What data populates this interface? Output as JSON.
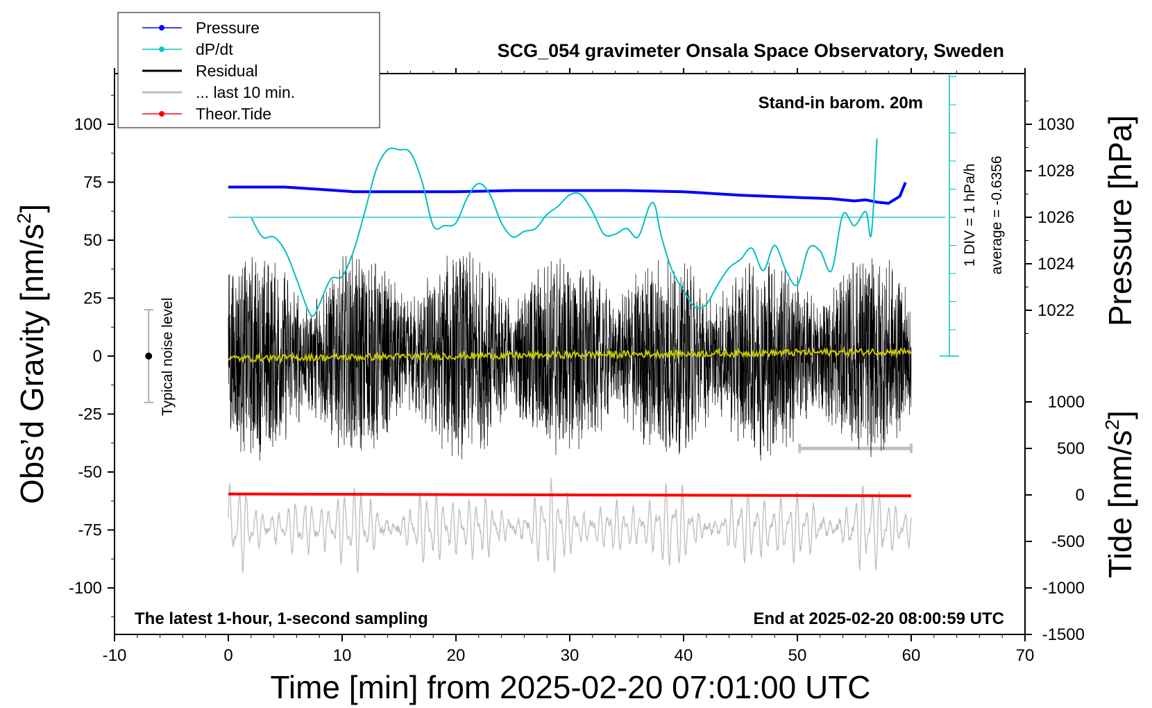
{
  "chart_data": {
    "type": "line",
    "title": "SCG_054 gravimeter Onsala Space Observatory, Sweden",
    "xlabel": "Time [min] from 2025-02-20 07:01:00 UTC",
    "ylabel_left": "Obs’d Gravity [nm/s",
    "ylabel_left_sup": "2",
    "ylabel_left_close": "]",
    "ylabel_right_pressure": "Pressure [hPa]",
    "ylabel_right_tide": "Tide [nm/s",
    "ylabel_right_tide_sup": "2",
    "ylabel_right_tide_close": "]",
    "note_topright": "Stand-in barom. 20m",
    "note_bottomleft": "The latest 1-hour, 1-second sampling",
    "note_bottomright": "End at 2025-02-20 08:00:59 UTC",
    "noise_label": "Typical noise level",
    "dpdt_scale_label": "1 DIV = 1 hPa/h",
    "dpdt_average_label": "average = -0.6356",
    "xlim": [
      -10,
      70
    ],
    "ylim_left": [
      -120,
      120
    ],
    "ylim_pressure": [
      1020,
      1030
    ],
    "ylim_tide": [
      -1500,
      1000
    ],
    "xticks": [
      "-10",
      "0",
      "10",
      "20",
      "30",
      "40",
      "50",
      "60",
      "70"
    ],
    "xtick_values": [
      -10,
      0,
      10,
      20,
      30,
      40,
      50,
      60,
      70
    ],
    "yticks_left": [
      "100",
      "75",
      "50",
      "25",
      "0",
      "-25",
      "-50",
      "-75",
      "-100"
    ],
    "ytick_left_values": [
      100,
      75,
      50,
      25,
      0,
      -25,
      -50,
      -75,
      -100
    ],
    "yticks_pressure": [
      "1030",
      "1028",
      "1026",
      "1024",
      "1022"
    ],
    "ytick_pressure_values": [
      1030,
      1028,
      1026,
      1024,
      1022
    ],
    "yticks_tide": [
      "1000",
      "500",
      "0",
      "-500",
      "-1000",
      "-1500"
    ],
    "ytick_tide_values": [
      1000,
      500,
      0,
      -500,
      -1000,
      -1500
    ],
    "legend": [
      {
        "label": "Pressure",
        "color": "#0000ff",
        "marker": true
      },
      {
        "label": "dP/dt",
        "color": "#00c8c8",
        "marker": true
      },
      {
        "label": "Residual",
        "color": "#000000",
        "marker": false
      },
      {
        "label": "... last 10 min.",
        "color": "#bebebe",
        "marker": false
      },
      {
        "label": "Theor.Tide",
        "color": "#ff0000",
        "marker": true
      }
    ],
    "colors": {
      "pressure": "#0000ff",
      "dpdt": "#00c0c0",
      "residual": "#000000",
      "last10": "#c0c0c0",
      "tide": "#ff0000",
      "residual_smooth": "#c8c800",
      "noise_bar": "#b0b0b0"
    },
    "pressure_series": {
      "x": [
        0,
        2,
        5,
        8,
        11,
        15,
        20,
        25,
        30,
        35,
        40,
        45,
        50,
        53,
        55,
        56,
        57,
        58,
        59,
        59.5
      ],
      "y": [
        1027.3,
        1027.3,
        1027.3,
        1027.2,
        1027.1,
        1027.1,
        1027.1,
        1027.15,
        1027.15,
        1027.15,
        1027.1,
        1026.95,
        1026.85,
        1026.8,
        1026.7,
        1026.75,
        1026.65,
        1026.6,
        1026.9,
        1027.5
      ]
    },
    "dpdt_series": {
      "x": [
        2,
        3,
        4,
        5,
        6,
        7,
        7.5,
        8,
        9,
        10,
        11,
        12,
        13,
        14,
        15,
        16,
        17,
        18,
        19,
        20,
        21,
        22,
        23,
        24,
        25,
        26,
        27,
        28,
        29,
        30,
        31,
        32,
        33,
        34,
        35,
        36,
        37,
        37.5,
        38,
        39,
        40,
        41,
        42,
        43,
        44,
        45,
        46,
        47,
        48,
        49,
        50,
        51,
        52,
        53,
        54,
        55,
        56,
        56.5,
        57
      ],
      "y": [
        0.0,
        -0.7,
        -0.7,
        -1.2,
        -2.2,
        -3.3,
        -3.5,
        -3.1,
        -2.2,
        -2.1,
        -1.2,
        0.2,
        1.7,
        2.4,
        2.4,
        2.3,
        1.3,
        -0.3,
        -0.3,
        -0.2,
        0.7,
        1.2,
        0.8,
        -0.2,
        -0.7,
        -0.5,
        -0.4,
        0.1,
        0.4,
        0.8,
        0.8,
        0.2,
        -0.6,
        -0.6,
        -0.4,
        -0.7,
        0.4,
        0.4,
        -0.6,
        -1.9,
        -2.6,
        -3.2,
        -3.1,
        -2.4,
        -1.8,
        -1.5,
        -1.1,
        -1.9,
        -1.0,
        -1.9,
        -2.4,
        -1.1,
        -1.2,
        -1.9,
        0.1,
        -0.3,
        0.2,
        -0.6,
        2.8
      ]
    },
    "residual_series": {
      "x_range": [
        0,
        60
      ],
      "y_range_approx": [
        -45,
        45
      ],
      "smoothed_mean_start": -1,
      "smoothed_mean_end": 2
    },
    "last10_series": {
      "x_range": [
        0,
        60
      ],
      "y_range_approx": [
        -1100,
        600
      ]
    },
    "tide_series": {
      "x": [
        0,
        60
      ],
      "y": [
        10,
        -10
      ]
    },
    "noise_level": {
      "x": -7,
      "y_center": 0,
      "y_half": 20
    }
  }
}
